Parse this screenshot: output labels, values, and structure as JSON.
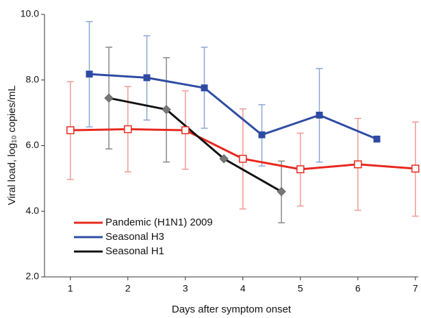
{
  "chart_data": {
    "type": "line",
    "xlabel": "Days after symptom onset",
    "ylabel": "Viral load, log₁₀ copies/mL",
    "xlim": [
      0.55,
      7.05
    ],
    "ylim": [
      2,
      10
    ],
    "xticks": [
      1,
      2,
      3,
      4,
      5,
      6,
      7
    ],
    "yticks": [
      {
        "value": 2,
        "label": "2.0"
      },
      {
        "value": 4,
        "label": "4.0"
      },
      {
        "value": 6,
        "label": "6.0"
      },
      {
        "value": 8,
        "label": "8.0"
      },
      {
        "value": 10,
        "label": "10.0"
      }
    ],
    "grid": false,
    "legend": "lower-left",
    "series": [
      {
        "name": "Pandemic (H1N1) 2009",
        "color": "#e8281e",
        "error_color": "#f29a94",
        "marker": "open-square",
        "x": [
          1,
          2,
          3,
          4,
          5,
          6,
          7
        ],
        "values": [
          6.47,
          6.5,
          6.47,
          5.6,
          5.28,
          5.43,
          5.3
        ],
        "err_low": [
          4.97,
          5.2,
          5.28,
          4.07,
          4.16,
          4.03,
          3.85
        ],
        "err_high": [
          7.95,
          7.8,
          7.67,
          7.12,
          6.38,
          6.83,
          6.72
        ]
      },
      {
        "name": "Seasonal H3",
        "color": "#2e4ba3",
        "error_color": "#8aa6d4",
        "marker": "square",
        "x": [
          1.33,
          2.33,
          3.33,
          4.33,
          5.33,
          6.33
        ],
        "values": [
          8.18,
          8.07,
          7.76,
          6.33,
          6.93,
          6.2
        ],
        "err_low": [
          6.57,
          6.78,
          6.53,
          5.38,
          5.5,
          null
        ],
        "err_high": [
          9.78,
          9.35,
          9.0,
          7.25,
          8.35,
          null
        ]
      },
      {
        "name": "Seasonal H1",
        "color": "#111111",
        "error_color": "#888888",
        "marker": "diamond",
        "x": [
          1.67,
          2.67,
          3.67,
          4.67
        ],
        "values": [
          7.45,
          7.1,
          5.6,
          4.6
        ],
        "err_low": [
          5.9,
          5.5,
          null,
          3.65
        ],
        "err_high": [
          9.0,
          8.68,
          null,
          5.53
        ]
      }
    ]
  }
}
